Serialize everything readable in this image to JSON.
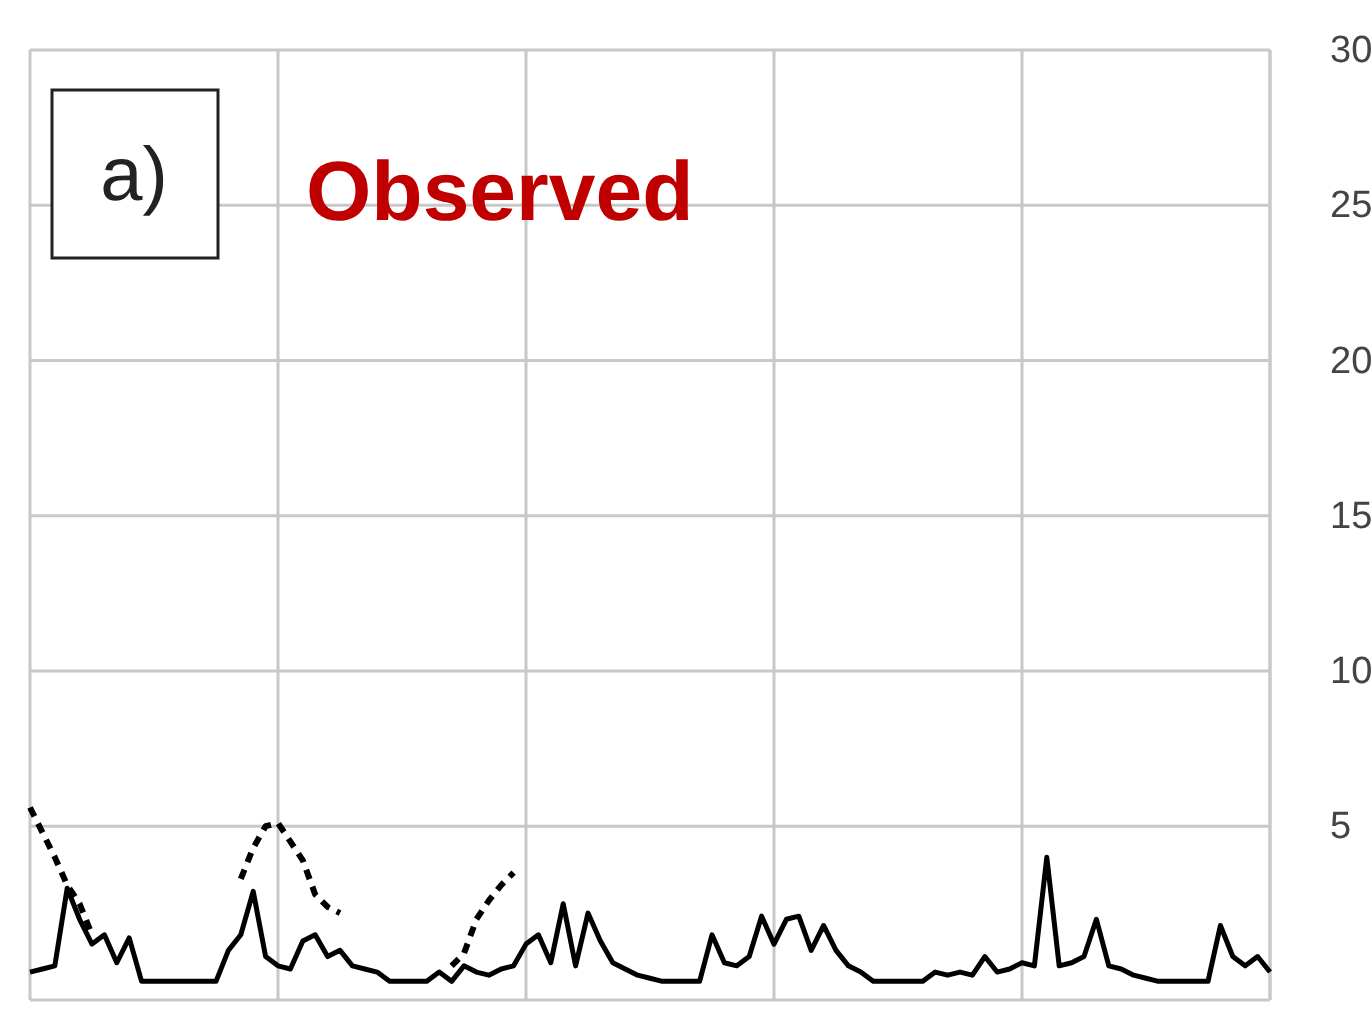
{
  "chart_data": {
    "type": "line",
    "title": "Observed",
    "annotations": [
      "a)"
    ],
    "categories": [
      null,
      null,
      null,
      null,
      null,
      null,
      null,
      null,
      null,
      null,
      null,
      null,
      null,
      null,
      null,
      null,
      null,
      null,
      null,
      null,
      null,
      null,
      null,
      null,
      null,
      null,
      null,
      null,
      null,
      null,
      null,
      null,
      null,
      null,
      null,
      null,
      null,
      null,
      null,
      null,
      null,
      null,
      null,
      null,
      null,
      null,
      null,
      null,
      null,
      null,
      null,
      null,
      null,
      null,
      null,
      null,
      null,
      null,
      null,
      null,
      null,
      null,
      null,
      null,
      null,
      null,
      null,
      null,
      null,
      null,
      null,
      null,
      null,
      null,
      null,
      null,
      null,
      null,
      null,
      null,
      null,
      null,
      null,
      null,
      null,
      null,
      null,
      null,
      null,
      null,
      null,
      null,
      null,
      null,
      null,
      null,
      null,
      null,
      null,
      null,
      null
    ],
    "ylim": [
      -0.6,
      30
    ],
    "yticks": [
      5,
      10,
      15,
      20,
      25,
      30
    ],
    "grid": true,
    "tick_labels": "y",
    "series": [
      {
        "color": "#000000",
        "line_style": "solid",
        "values": [
          0.3,
          0.4,
          0.5,
          3.0,
          2.0,
          1.2,
          1.5,
          0.6,
          1.4,
          0,
          0,
          0,
          0,
          0,
          0,
          0,
          1.0,
          1.5,
          2.9,
          0.8,
          0.5,
          0.4,
          1.3,
          1.5,
          0.8,
          1.0,
          0.5,
          0.4,
          0.3,
          0,
          0,
          0,
          0,
          0.3,
          0,
          0.5,
          0.3,
          0.2,
          0.4,
          0.5,
          1.2,
          1.5,
          0.6,
          2.5,
          0.5,
          2.2,
          1.3,
          0.6,
          0.4,
          0.2,
          0.1,
          0,
          0,
          0,
          0,
          1.5,
          0.6,
          0.5,
          0.8,
          2.1,
          1.2,
          2.0,
          2.1,
          1.0,
          1.8,
          1.0,
          0.5,
          0.3,
          0,
          0,
          0,
          0,
          0,
          0.3,
          0.2,
          0.3,
          0.2,
          0.8,
          0.3,
          0.4,
          0.6,
          0.5,
          4.0,
          0.5,
          0.6,
          0.8,
          2.0,
          0.5,
          0.4,
          0.2,
          0.1,
          0,
          0,
          0,
          0,
          0,
          1.8,
          0.8,
          0.5,
          0.8,
          0.3
        ]
      },
      {
        "color": "#000000",
        "line_style": "dashed",
        "values": [
          5.6,
          4.8,
          4.0,
          3.1,
          2.5,
          1.5,
          null,
          null,
          null,
          null,
          null,
          null,
          null,
          null,
          null,
          null,
          null,
          3.3,
          4.3,
          5.0,
          5.1,
          4.5,
          3.9,
          2.8,
          2.4,
          2.2,
          null,
          null,
          null,
          null,
          null,
          null,
          null,
          null,
          0.5,
          0.9,
          2.0,
          2.6,
          3.1,
          3.5,
          null,
          null,
          null,
          null,
          null,
          null,
          null,
          null,
          null,
          null,
          null,
          null,
          null,
          null,
          null,
          null,
          null,
          null,
          null,
          null,
          null,
          null,
          null,
          null,
          null,
          null,
          null,
          null,
          null,
          null,
          null,
          null,
          null,
          null,
          null,
          null,
          null,
          null,
          null,
          null,
          null,
          null,
          null,
          null,
          null,
          null,
          null,
          null,
          null,
          null,
          null,
          null,
          null,
          null,
          null,
          null,
          null,
          null,
          null,
          null,
          null
        ]
      }
    ]
  }
}
